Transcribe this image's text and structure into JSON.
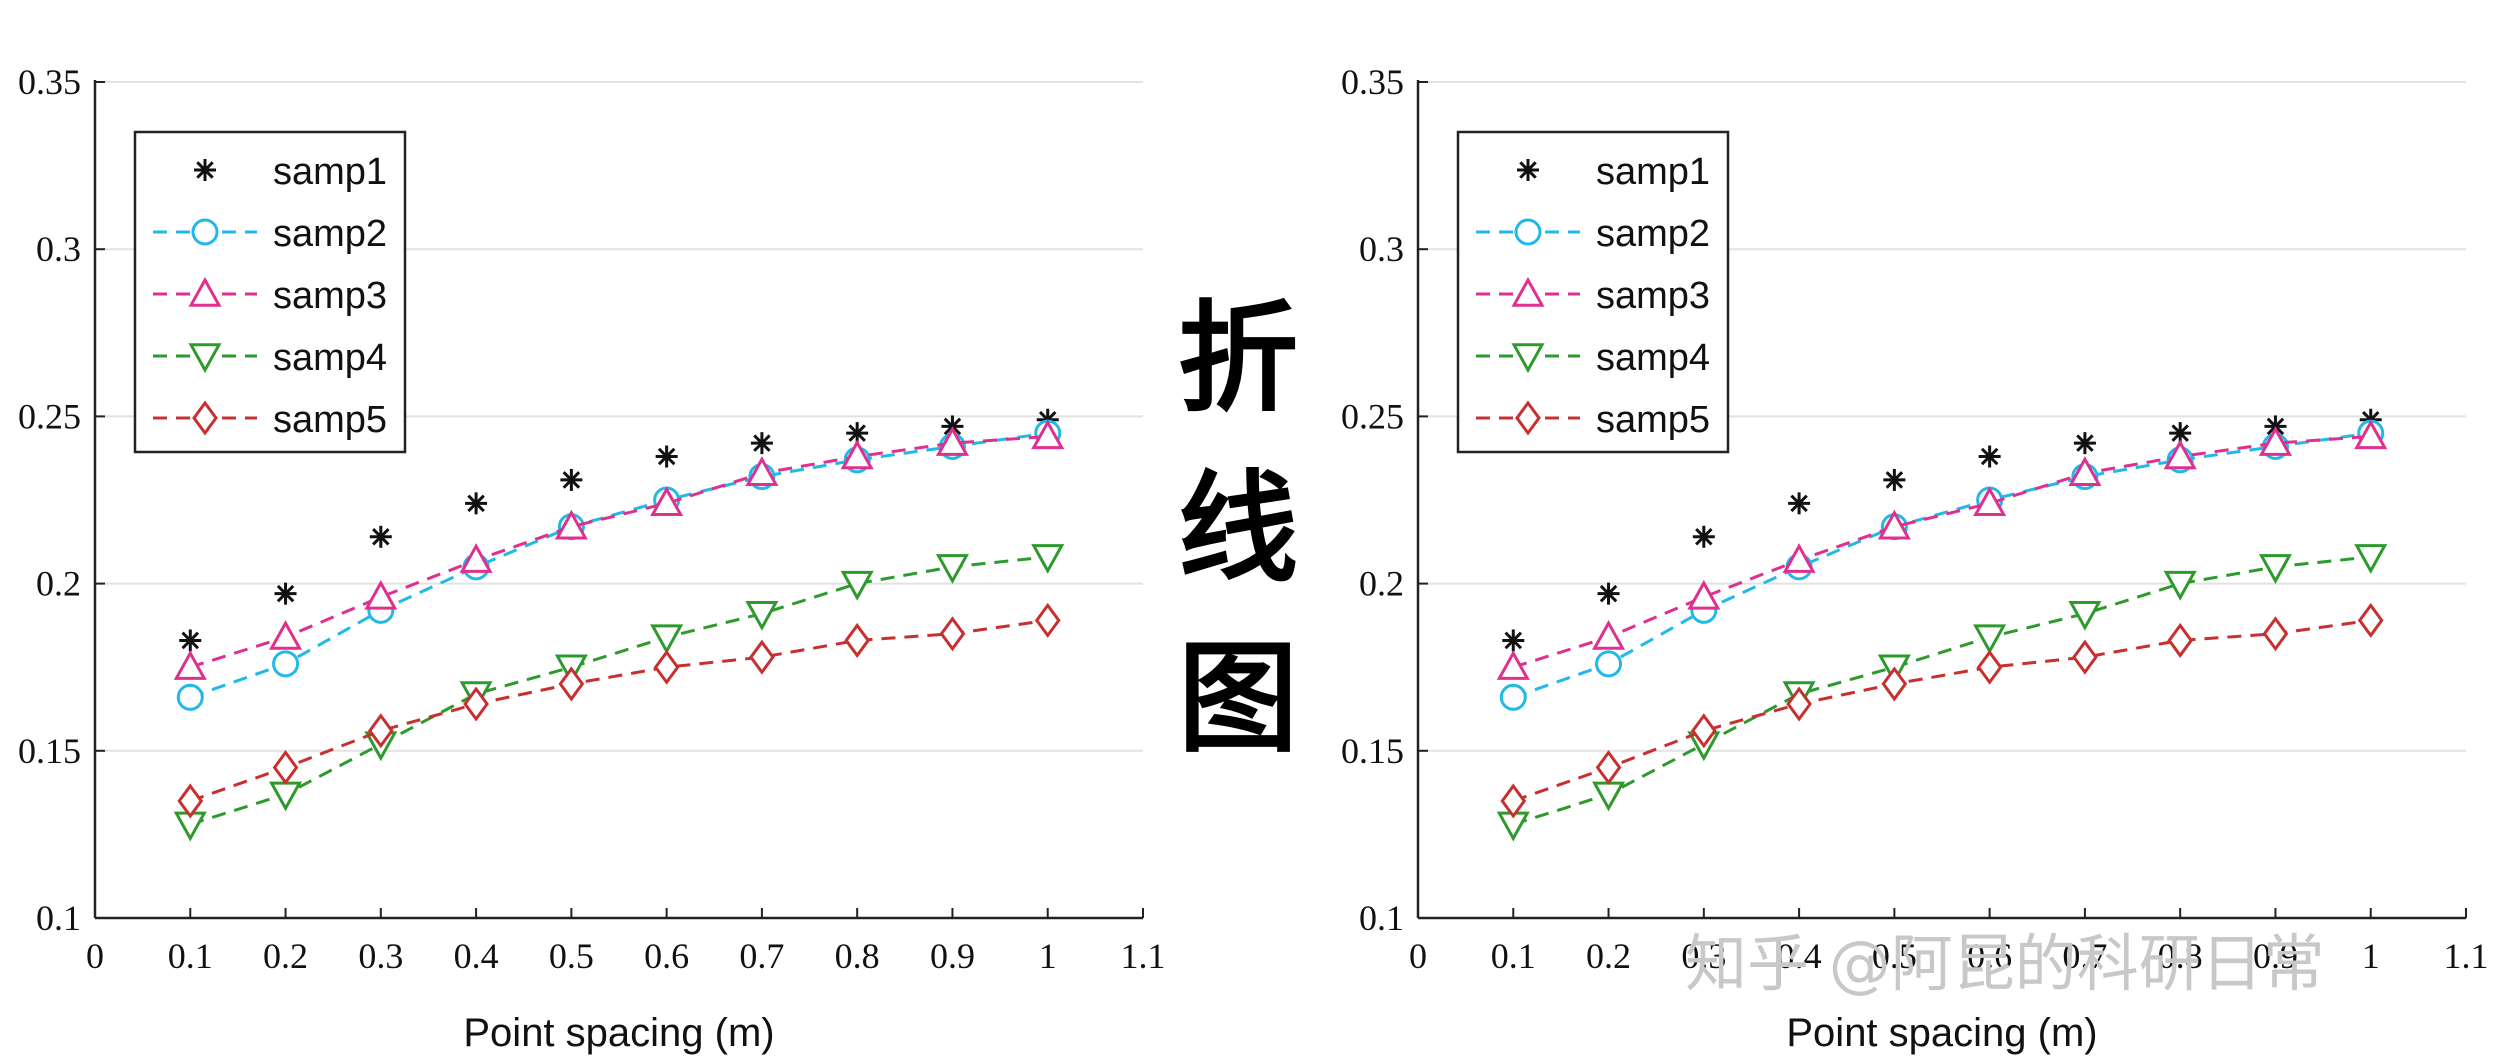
{
  "center_label": "折线图",
  "watermark": "知乎 @阿昆的科研日常",
  "colors": {
    "samp1": "#111111",
    "samp2": "#22b8e8",
    "samp3": "#e0308f",
    "samp4": "#2e9a2e",
    "samp5": "#c83030",
    "grid": "#e2e2e2",
    "axis": "#222222"
  },
  "chart_data": [
    {
      "type": "line",
      "xlabel": "Point spacing (m)",
      "ylabel": "",
      "xlim": [
        0,
        1.1
      ],
      "ylim": [
        0.1,
        0.35
      ],
      "xticks": [
        "0",
        "0.1",
        "0.2",
        "0.3",
        "0.4",
        "0.5",
        "0.6",
        "0.7",
        "0.8",
        "0.9",
        "1",
        "1.1"
      ],
      "yticks": [
        "0.1",
        "0.15",
        "0.2",
        "0.25",
        "0.3",
        "0.35"
      ],
      "grid": "horizontal",
      "legend_position": "top-left",
      "x": [
        0.1,
        0.2,
        0.3,
        0.4,
        0.5,
        0.6,
        0.7,
        0.8,
        0.9,
        1.0
      ],
      "series": [
        {
          "name": "samp1",
          "marker": "asterisk",
          "line": "none",
          "values": [
            0.183,
            0.197,
            0.214,
            0.224,
            0.231,
            0.238,
            0.242,
            0.245,
            0.247,
            0.249
          ]
        },
        {
          "name": "samp2",
          "marker": "circle",
          "line": "dashed",
          "values": [
            0.166,
            0.176,
            0.192,
            0.205,
            0.217,
            0.225,
            0.232,
            0.237,
            0.241,
            0.245
          ]
        },
        {
          "name": "samp3",
          "marker": "triangle-up",
          "line": "dashed",
          "values": [
            0.175,
            0.184,
            0.196,
            0.207,
            0.217,
            0.224,
            0.233,
            0.238,
            0.242,
            0.244
          ]
        },
        {
          "name": "samp4",
          "marker": "triangle-down",
          "line": "dashed",
          "values": [
            0.128,
            0.137,
            0.152,
            0.167,
            0.175,
            0.184,
            0.191,
            0.2,
            0.205,
            0.208
          ]
        },
        {
          "name": "samp5",
          "marker": "diamond",
          "line": "dashed",
          "values": [
            0.135,
            0.145,
            0.156,
            0.164,
            0.17,
            0.175,
            0.178,
            0.183,
            0.185,
            0.189
          ]
        }
      ]
    },
    {
      "type": "line",
      "xlabel": "Point spacing (m)",
      "ylabel": "",
      "xlim": [
        0,
        1.1
      ],
      "ylim": [
        0.1,
        0.35
      ],
      "xticks": [
        "0",
        "0.1",
        "0.2",
        "0.3",
        "0.4",
        "0.5",
        "0.6",
        "0.7",
        "0.8",
        "0.9",
        "1",
        "1.1"
      ],
      "yticks": [
        "0.1",
        "0.15",
        "0.2",
        "0.25",
        "0.3",
        "0.35"
      ],
      "grid": "horizontal",
      "legend_position": "top-left",
      "x": [
        0.1,
        0.2,
        0.3,
        0.4,
        0.5,
        0.6,
        0.7,
        0.8,
        0.9,
        1.0
      ],
      "series": [
        {
          "name": "samp1",
          "marker": "asterisk",
          "line": "none",
          "values": [
            0.183,
            0.197,
            0.214,
            0.224,
            0.231,
            0.238,
            0.242,
            0.245,
            0.247,
            0.249
          ]
        },
        {
          "name": "samp2",
          "marker": "circle",
          "line": "dashed",
          "values": [
            0.166,
            0.176,
            0.192,
            0.205,
            0.217,
            0.225,
            0.232,
            0.237,
            0.241,
            0.245
          ]
        },
        {
          "name": "samp3",
          "marker": "triangle-up",
          "line": "dashed",
          "values": [
            0.175,
            0.184,
            0.196,
            0.207,
            0.217,
            0.224,
            0.233,
            0.238,
            0.242,
            0.244
          ]
        },
        {
          "name": "samp4",
          "marker": "triangle-down",
          "line": "dashed",
          "values": [
            0.128,
            0.137,
            0.152,
            0.167,
            0.175,
            0.184,
            0.191,
            0.2,
            0.205,
            0.208
          ]
        },
        {
          "name": "samp5",
          "marker": "diamond",
          "line": "dashed",
          "values": [
            0.135,
            0.145,
            0.156,
            0.164,
            0.17,
            0.175,
            0.178,
            0.183,
            0.185,
            0.189
          ]
        }
      ]
    }
  ]
}
